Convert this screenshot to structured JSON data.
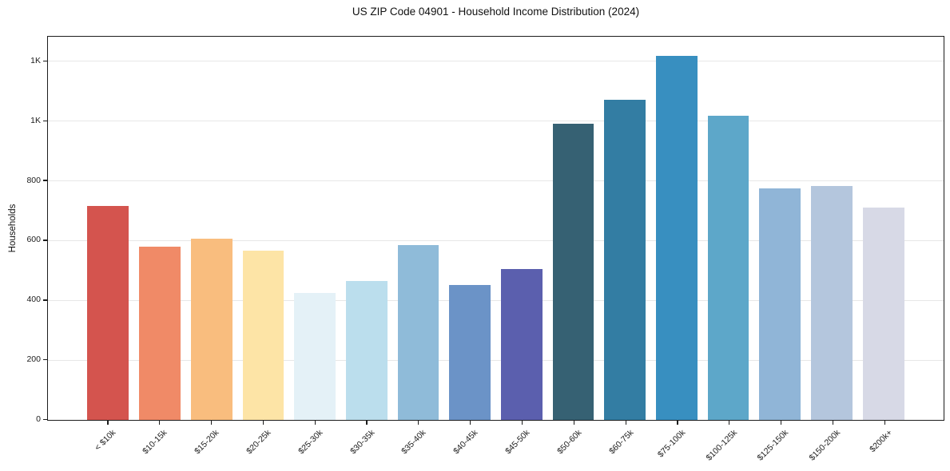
{
  "chart_data": {
    "type": "bar",
    "title": "US ZIP Code 04901 - Household Income Distribution (2024)",
    "xlabel": "",
    "ylabel": "Households",
    "categories": [
      "< $10k",
      "$10-15k",
      "$15-20k",
      "$20-25k",
      "$25-30k",
      "$30-35k",
      "$35-40k",
      "$40-45k",
      "$45-50k",
      "$50-60k",
      "$60-75k",
      "$75-100k",
      "$100-125k",
      "$125-150k",
      "$150-200k",
      "$200k+"
    ],
    "values": [
      715,
      580,
      605,
      565,
      425,
      465,
      585,
      450,
      505,
      990,
      1070,
      1215,
      1015,
      773,
      781,
      710
    ],
    "bar_colors": [
      "#d4544e",
      "#f08a67",
      "#f9bd7e",
      "#fde4a6",
      "#e4f1f7",
      "#bbdeed",
      "#8fbbd9",
      "#6b93c7",
      "#5b5fae",
      "#366173",
      "#337da3",
      "#388fc0",
      "#5da7c9",
      "#90b5d7",
      "#b4c6dd",
      "#d7d9e6"
    ],
    "ylim": [
      0,
      1280
    ],
    "yticks": [
      {
        "value": 0,
        "label": "0"
      },
      {
        "value": 200,
        "label": "200"
      },
      {
        "value": 400,
        "label": "400"
      },
      {
        "value": 600,
        "label": "600"
      },
      {
        "value": 800,
        "label": "800"
      },
      {
        "value": 1000,
        "label": "1K"
      },
      {
        "value": 1200,
        "label": "1K"
      }
    ],
    "grid": "horizontal",
    "legend": "none",
    "background_color": "#ffffff",
    "spine_color": "#1c1c1c",
    "grid_color": "#e7e7e7"
  }
}
